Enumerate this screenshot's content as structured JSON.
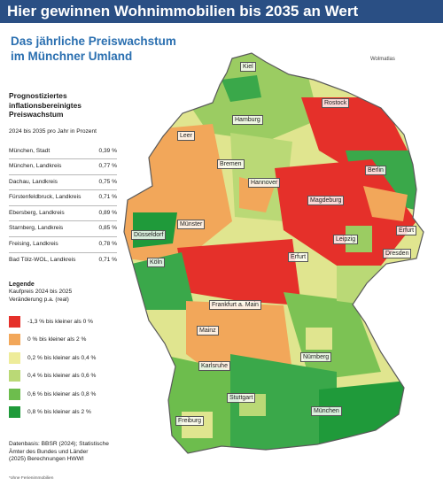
{
  "header": {
    "title": "Hier gewinnen Wohnimmobilien bis 2035 an Wert"
  },
  "subtitle": {
    "line1": "Das jährliche Preiswachstum",
    "line2": "im Münchner Umland"
  },
  "source_tag": "Wolmatlas",
  "panel": {
    "title_line1": "Prognostiziertes",
    "title_line2": "inflationsbereinigtes",
    "title_line3": "Preiswachstum",
    "subtitle": "2024 bis 2035 pro Jahr in Prozent",
    "rows": [
      {
        "name": "München, Stadt",
        "value": "0,39 %"
      },
      {
        "name": "München, Landkreis",
        "value": "0,77 %"
      },
      {
        "name": "Dachau, Landkreis",
        "value": "0,75 %"
      },
      {
        "name": "Fürstenfeldbruck, Landkreis",
        "value": "0,71 %"
      },
      {
        "name": "Ebersberg, Landkreis",
        "value": "0,89 %"
      },
      {
        "name": "Starnberg, Landkreis",
        "value": "0,85 %"
      },
      {
        "name": "Freising, Landkreis",
        "value": "0,78 %"
      },
      {
        "name": "Bad Tölz-WOL, Landkreis",
        "value": "0,71 %"
      }
    ]
  },
  "legend": {
    "title": "Legende",
    "sub_line1": "Kaufpreis 2024 bis 2025",
    "sub_line2": "Veränderung p.a. (real)",
    "items": [
      {
        "label": "-1,3 % bis kleiner als 0 %",
        "color": "#e5302a"
      },
      {
        "label": "0 % bis kleiner als 2 %",
        "color": "#f2a75a"
      },
      {
        "label": "0,2 % bis kleiner als 0,4 %",
        "color": "#eeec9a"
      },
      {
        "label": "0,4 % bis kleiner als 0,6 %",
        "color": "#bad976"
      },
      {
        "label": "0,6 % bis kleiner als 0,8 %",
        "color": "#6dbd4d"
      },
      {
        "label": "0,8 % bis kleiner als 2 %",
        "color": "#1f9a3a"
      }
    ]
  },
  "footnote": {
    "line1": "Datenbasis: BBSR (2024); Statistische",
    "line2": "Ämter des Bundes und Länder",
    "line3": "(2025) Berechnungen HWWI"
  },
  "footer": "*ohne Ferienimmobilien",
  "cities": {
    "kiel": "Kiel",
    "rostock": "Rostock",
    "hamburg": "Hamburg",
    "leer": "Leer",
    "bremen": "Bremen",
    "hannover": "Hannover",
    "berlin": "Berlin",
    "magdeburg": "Magdeburg",
    "muenster": "Münster",
    "duesseldorf": "Düsseldorf",
    "leipzig": "Leipzig",
    "erfurt": "Erfurt",
    "koeln": "Köln",
    "dresden": "Dresden",
    "erfurt2": "Erfurt",
    "frankfurt": "Frankfurt a. Main",
    "mainz": "Mainz",
    "nuernberg": "Nürnberg",
    "karlsruhe": "Karlsruhe",
    "stuttgart": "Stuttgart",
    "muenchen": "München",
    "freiburg": "Freiburg"
  }
}
